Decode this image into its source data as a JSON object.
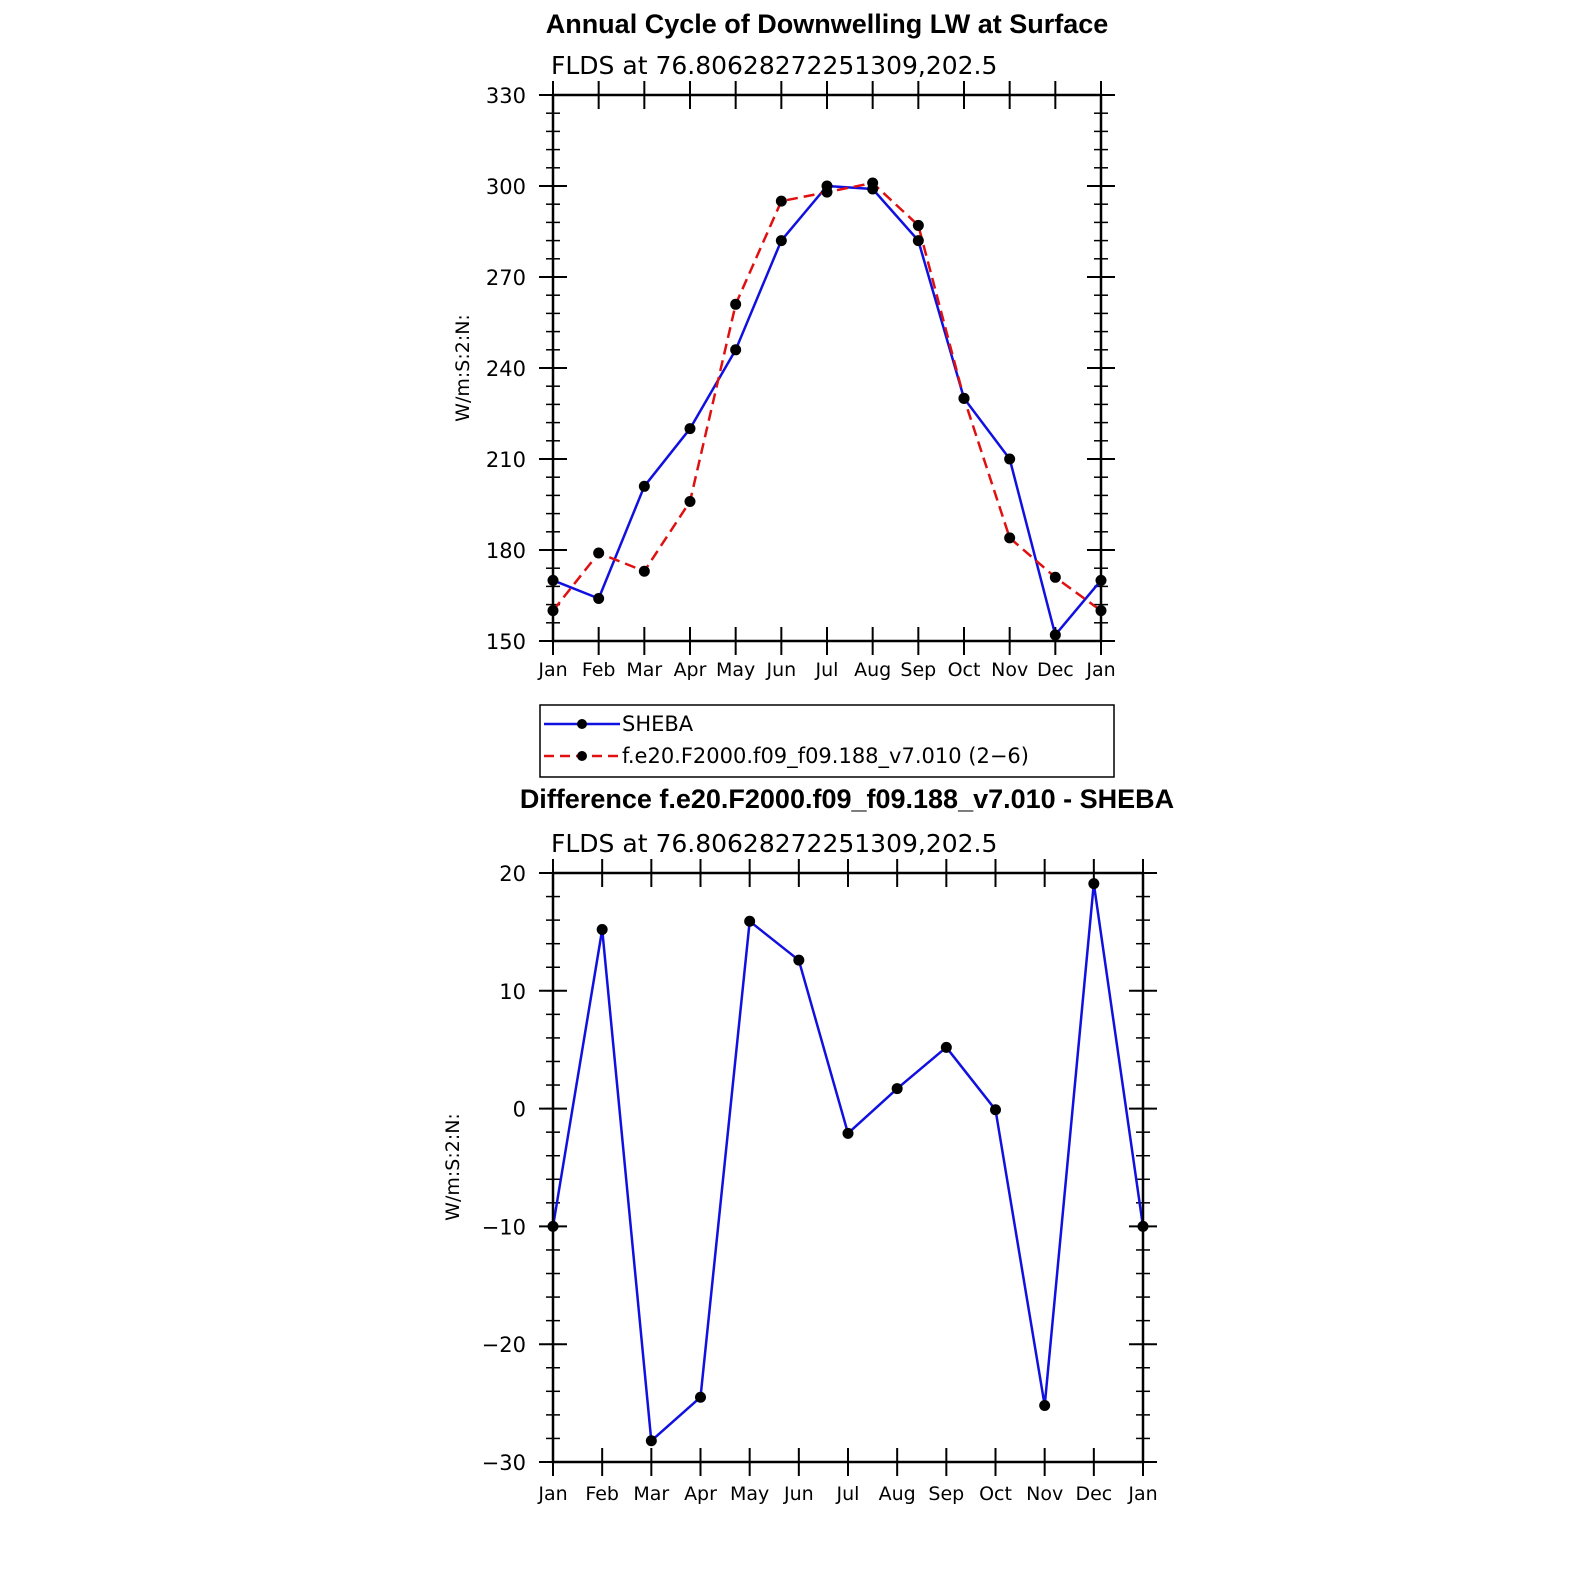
{
  "chart_data": [
    {
      "type": "line",
      "title": "Annual Cycle of Downwelling LW at Surface",
      "subtitle": "FLDS at 76.80628272251309,202.5",
      "ylabel": "W/m:S:2:N:",
      "xlabel": "",
      "ylim": [
        150,
        330
      ],
      "yticks": [
        "330",
        "300",
        "270",
        "240",
        "210",
        "180",
        "150"
      ],
      "ytick_values": [
        330,
        300,
        270,
        240,
        210,
        180,
        150
      ],
      "categories": [
        "Jan",
        "Feb",
        "Mar",
        "Apr",
        "May",
        "Jun",
        "Jul",
        "Aug",
        "Sep",
        "Oct",
        "Nov",
        "Dec",
        "Jan"
      ],
      "grid": false,
      "legend_position": "below",
      "series": [
        {
          "name": "SHEBA",
          "color": "#1010e0",
          "dash": "solid",
          "values": [
            170,
            164,
            201,
            220,
            246,
            282,
            300,
            299,
            282,
            230,
            210,
            152,
            170
          ]
        },
        {
          "name": "f.e20.F2000.f09_f09.188_v7.010 (2−6)",
          "color": "#e01010",
          "dash": "dashed",
          "values": [
            160,
            179,
            173,
            196,
            261,
            295,
            298,
            301,
            287,
            230,
            184,
            171,
            160
          ]
        }
      ]
    },
    {
      "type": "line",
      "title": "Difference f.e20.F2000.f09_f09.188_v7.010 - SHEBA",
      "subtitle": "FLDS at 76.80628272251309,202.5",
      "ylabel": "W/m:S:2:N:",
      "xlabel": "",
      "ylim": [
        -30,
        20
      ],
      "yticks": [
        "20",
        "10",
        "0",
        "−10",
        "−20",
        "−30"
      ],
      "ytick_values": [
        20,
        10,
        0,
        -10,
        -20,
        -30
      ],
      "categories": [
        "Jan",
        "Feb",
        "Mar",
        "Apr",
        "May",
        "Jun",
        "Jul",
        "Aug",
        "Sep",
        "Oct",
        "Nov",
        "Dec",
        "Jan"
      ],
      "grid": false,
      "series": [
        {
          "color": "#1010e0",
          "dash": "solid",
          "values": [
            -10,
            15.2,
            -28.2,
            -24.5,
            15.9,
            12.6,
            -2.1,
            1.7,
            5.2,
            -0.1,
            -25.2,
            19.1,
            -10
          ]
        }
      ]
    }
  ]
}
